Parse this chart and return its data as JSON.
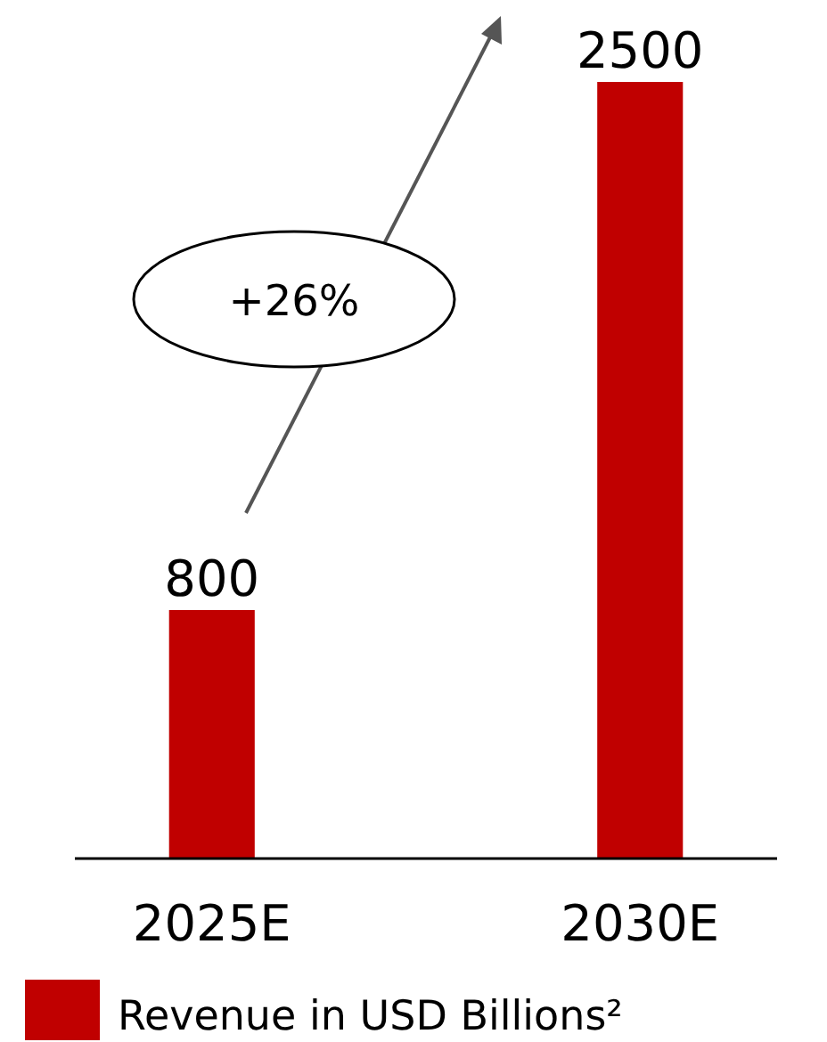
{
  "chart_data": {
    "type": "bar",
    "categories": [
      "2025E",
      "2030E"
    ],
    "series": [
      {
        "name": "Revenue in USD Billions²",
        "color": "#c00000",
        "values": [
          800,
          2500
        ]
      }
    ],
    "ylim": [
      0,
      2500
    ],
    "data_labels": true,
    "legend": "bottom",
    "annotations": [
      "+26%"
    ]
  }
}
